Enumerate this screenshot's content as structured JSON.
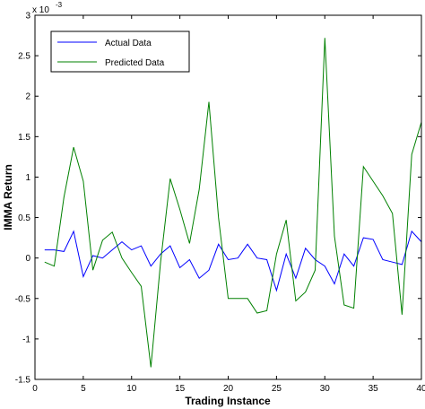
{
  "chart_data": {
    "type": "line",
    "title": "",
    "xlabel": "Trading Instance",
    "ylabel": "IMMA Return",
    "y_exponent_label": "x 10",
    "y_exponent_power": "-3",
    "xlim": [
      0,
      40
    ],
    "ylim": [
      -1.5,
      3
    ],
    "x_ticks": [
      "0",
      "5",
      "10",
      "15",
      "20",
      "25",
      "30",
      "35",
      "40"
    ],
    "y_ticks": [
      "-1.5",
      "-1",
      "-0.5",
      "0",
      "0.5",
      "1",
      "1.5",
      "2",
      "2.5",
      "3"
    ],
    "grid": false,
    "legend_position": "top-left",
    "x": [
      1,
      2,
      3,
      4,
      5,
      6,
      7,
      8,
      9,
      10,
      11,
      12,
      13,
      14,
      15,
      16,
      17,
      18,
      19,
      20,
      21,
      22,
      23,
      24,
      25,
      26,
      27,
      28,
      29,
      30,
      31,
      32,
      33,
      34,
      35,
      36,
      37,
      38,
      39,
      40
    ],
    "series": [
      {
        "name": "Actual Data",
        "color": "#0000ff",
        "values": [
          0.1,
          0.1,
          0.08,
          0.33,
          -0.23,
          0.03,
          0.0,
          0.1,
          0.2,
          0.1,
          0.15,
          -0.1,
          0.05,
          0.15,
          -0.12,
          -0.02,
          -0.25,
          -0.15,
          0.17,
          -0.02,
          0.0,
          0.17,
          0.0,
          -0.02,
          -0.4,
          0.05,
          -0.25,
          0.12,
          -0.02,
          -0.1,
          -0.32,
          0.05,
          -0.1,
          0.25,
          0.23,
          -0.02,
          -0.05,
          -0.08,
          0.33,
          0.2
        ]
      },
      {
        "name": "Predicted Data",
        "color": "#008000",
        "values": [
          -0.05,
          -0.1,
          0.75,
          1.37,
          0.95,
          -0.15,
          0.22,
          0.32,
          0.0,
          -0.18,
          -0.35,
          -1.35,
          -0.05,
          0.98,
          0.6,
          0.18,
          0.85,
          1.93,
          0.5,
          -0.5,
          -0.5,
          -0.5,
          -0.68,
          -0.65,
          0.05,
          0.47,
          -0.53,
          -0.42,
          -0.15,
          2.72,
          0.27,
          -0.58,
          -0.62,
          1.13,
          0.95,
          0.77,
          0.55,
          -0.7,
          1.28,
          1.68
        ]
      }
    ]
  }
}
